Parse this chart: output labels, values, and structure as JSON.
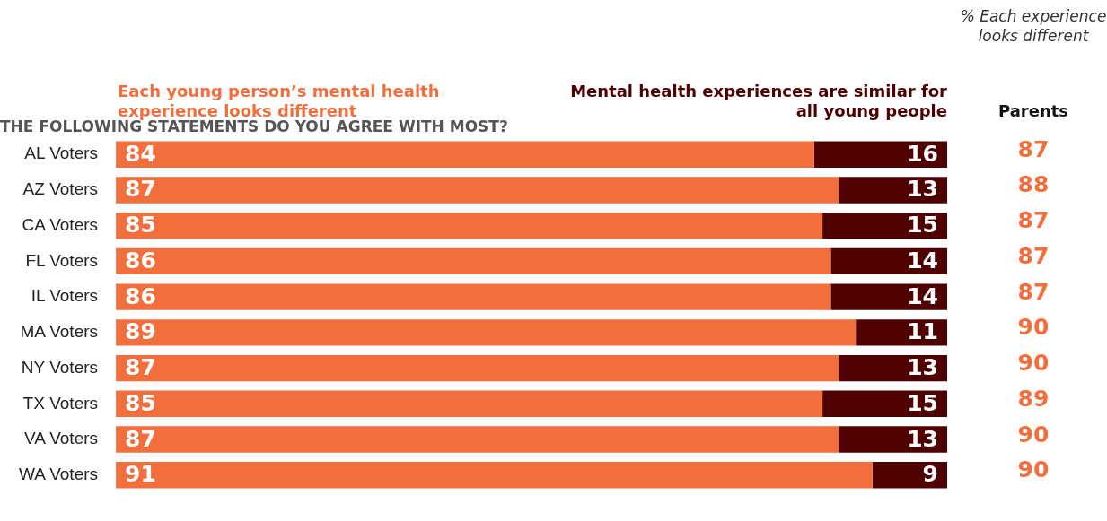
{
  "chart_data": {
    "type": "bar",
    "orientation": "horizontal",
    "stacked": true,
    "title": "THE FOLLOWING STATEMENTS DO YOU AGREE WITH MOST?",
    "categories": [
      "AL Voters",
      "AZ Voters",
      "CA Voters",
      "FL Voters",
      "IL Voters",
      "MA Voters",
      "NY Voters",
      "TX Voters",
      "VA Voters",
      "WA Voters"
    ],
    "series": [
      {
        "name": "Each young person’s mental health experience looks different",
        "color": "#f26f3d",
        "values": [
          84,
          87,
          85,
          86,
          86,
          89,
          87,
          85,
          87,
          91
        ]
      },
      {
        "name": "Mental health experiences are similar for all young people",
        "color": "#4f0000",
        "values": [
          16,
          13,
          15,
          14,
          14,
          11,
          13,
          15,
          13,
          9
        ]
      }
    ],
    "xlim": [
      0,
      100
    ],
    "tick_labels": "y",
    "data_labels": true,
    "annotations": [
      "% Each experience looks different",
      "Parents",
      "87",
      "88",
      "87",
      "87",
      "87",
      "90",
      "90",
      "89",
      "90",
      "90"
    ]
  }
}
